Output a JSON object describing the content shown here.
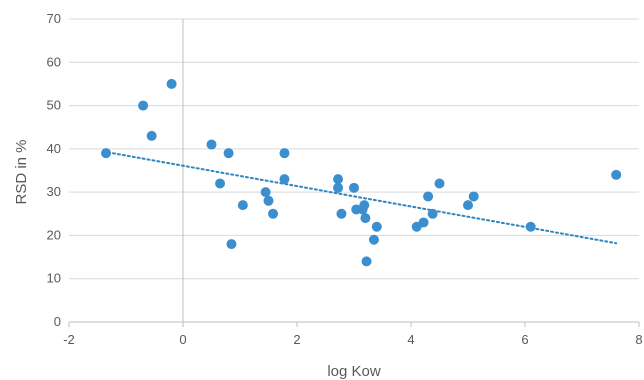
{
  "chart_data": {
    "type": "scatter",
    "title": "",
    "xlabel": "log Kow",
    "ylabel": "RSD in %",
    "xlim": [
      -2,
      8
    ],
    "ylim": [
      0,
      70
    ],
    "xticks": [
      -2,
      0,
      2,
      4,
      6,
      8
    ],
    "yticks": [
      0,
      10,
      20,
      30,
      40,
      50,
      60,
      70
    ],
    "grid": "horizontal",
    "legend": "none",
    "point_color": "#3b8fcf",
    "trendline": {
      "type": "linear",
      "style": "dotted",
      "color": "#2e86c1",
      "x": [
        -1.4,
        7.6
      ],
      "y": [
        39.4,
        18.2
      ]
    },
    "series": [
      {
        "x": [
          -1.35,
          -0.7,
          -0.2,
          -0.55,
          0.5,
          0.8,
          0.65,
          0.85,
          1.05,
          1.45,
          1.5,
          1.58,
          1.78,
          1.78,
          2.72,
          2.72,
          2.78,
          3.0,
          3.04,
          3.15,
          3.18,
          3.2,
          3.22,
          3.35,
          3.4,
          4.1,
          4.22,
          4.3,
          4.38,
          4.5,
          5.0,
          5.1,
          6.1,
          7.6
        ],
        "y": [
          39,
          50,
          55,
          43,
          41,
          39,
          32,
          18,
          27,
          30,
          28,
          25,
          39,
          33,
          33,
          31,
          25,
          31,
          26,
          26,
          27,
          24,
          14,
          19,
          22,
          22,
          23,
          29,
          25,
          32,
          27,
          29,
          22,
          34
        ]
      }
    ]
  }
}
